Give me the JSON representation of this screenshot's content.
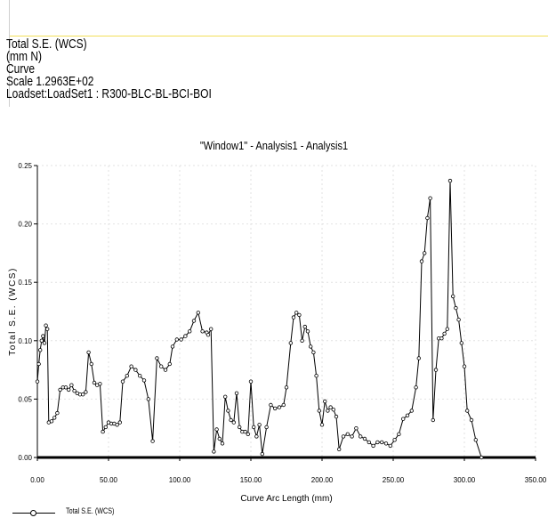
{
  "header": {
    "lines": [
      "Total S.E. (WCS)",
      "(mm N)",
      "Curve",
      "Scale  1.2963E+02",
      "Loadset:LoadSet1 :  R300-BLC-BL-BCI-BOI"
    ]
  },
  "chart_data": {
    "type": "line",
    "title": "\"Window1\" - Analysis1 - Analysis1",
    "xlabel": "Curve Arc Length (mm)",
    "ylabel": "Total S.E. (WCS)",
    "xlim": [
      0,
      350
    ],
    "ylim": [
      0,
      0.25
    ],
    "x_ticks": [
      "0.00",
      "50.00",
      "100.00",
      "150.00",
      "200.00",
      "250.00",
      "300.00",
      "350.00"
    ],
    "y_ticks": [
      "0.00",
      "0.05",
      "0.10",
      "0.15",
      "0.20",
      "0.25"
    ],
    "grid": true,
    "legend_position": "bottom-left",
    "series": [
      {
        "name": "Total S.E. (WCS)",
        "color": "#000000",
        "marker": "open-circle",
        "points": [
          [
            0,
            0.065
          ],
          [
            1,
            0.08
          ],
          [
            2,
            0.092
          ],
          [
            3,
            0.1
          ],
          [
            4,
            0.104
          ],
          [
            5,
            0.098
          ],
          [
            6,
            0.113
          ],
          [
            7,
            0.11
          ],
          [
            8,
            0.03
          ],
          [
            10,
            0.031
          ],
          [
            12,
            0.034
          ],
          [
            14,
            0.038
          ],
          [
            16,
            0.058
          ],
          [
            18,
            0.06
          ],
          [
            20,
            0.06
          ],
          [
            22,
            0.058
          ],
          [
            24,
            0.062
          ],
          [
            26,
            0.057
          ],
          [
            28,
            0.055
          ],
          [
            30,
            0.054
          ],
          [
            32,
            0.054
          ],
          [
            34,
            0.056
          ],
          [
            36,
            0.09
          ],
          [
            38,
            0.08
          ],
          [
            40,
            0.064
          ],
          [
            42,
            0.062
          ],
          [
            44,
            0.063
          ],
          [
            46,
            0.022
          ],
          [
            48,
            0.026
          ],
          [
            50,
            0.03
          ],
          [
            52,
            0.029
          ],
          [
            54,
            0.029
          ],
          [
            56,
            0.028
          ],
          [
            58,
            0.03
          ],
          [
            60,
            0.065
          ],
          [
            63,
            0.07
          ],
          [
            66,
            0.078
          ],
          [
            69,
            0.075
          ],
          [
            72,
            0.07
          ],
          [
            75,
            0.066
          ],
          [
            78,
            0.05
          ],
          [
            81,
            0.014
          ],
          [
            84,
            0.085
          ],
          [
            87,
            0.078
          ],
          [
            90,
            0.075
          ],
          [
            93,
            0.08
          ],
          [
            95,
            0.095
          ],
          [
            98,
            0.101
          ],
          [
            101,
            0.101
          ],
          [
            104,
            0.104
          ],
          [
            107,
            0.108
          ],
          [
            110,
            0.117
          ],
          [
            113,
            0.124
          ],
          [
            116,
            0.108
          ],
          [
            119,
            0.107
          ],
          [
            120,
            0.105
          ],
          [
            122,
            0.11
          ],
          [
            124,
            0.005
          ],
          [
            126,
            0.024
          ],
          [
            128,
            0.016
          ],
          [
            130,
            0.012
          ],
          [
            132,
            0.052
          ],
          [
            134,
            0.04
          ],
          [
            136,
            0.032
          ],
          [
            138,
            0.03
          ],
          [
            140,
            0.055
          ],
          [
            142,
            0.026
          ],
          [
            144,
            0.022
          ],
          [
            146,
            0.022
          ],
          [
            148,
            0.02
          ],
          [
            150,
            0.065
          ],
          [
            152,
            0.026
          ],
          [
            154,
            0.018
          ],
          [
            156,
            0.028
          ],
          [
            158,
            0.003
          ],
          [
            161,
            0.026
          ],
          [
            164,
            0.045
          ],
          [
            167,
            0.042
          ],
          [
            170,
            0.043
          ],
          [
            173,
            0.045
          ],
          [
            175,
            0.06
          ],
          [
            178,
            0.098
          ],
          [
            180,
            0.12
          ],
          [
            182,
            0.124
          ],
          [
            184,
            0.122
          ],
          [
            186,
            0.1
          ],
          [
            188,
            0.112
          ],
          [
            190,
            0.108
          ],
          [
            192,
            0.095
          ],
          [
            194,
            0.09
          ],
          [
            196,
            0.07
          ],
          [
            198,
            0.04
          ],
          [
            200,
            0.028
          ],
          [
            202,
            0.048
          ],
          [
            204,
            0.04
          ],
          [
            206,
            0.043
          ],
          [
            208,
            0.041
          ],
          [
            210,
            0.035
          ],
          [
            212,
            0.007
          ],
          [
            215,
            0.018
          ],
          [
            218,
            0.02
          ],
          [
            221,
            0.018
          ],
          [
            224,
            0.025
          ],
          [
            227,
            0.018
          ],
          [
            230,
            0.016
          ],
          [
            233,
            0.013
          ],
          [
            236,
            0.01
          ],
          [
            239,
            0.013
          ],
          [
            242,
            0.013
          ],
          [
            245,
            0.012
          ],
          [
            248,
            0.01
          ],
          [
            251,
            0.015
          ],
          [
            254,
            0.02
          ],
          [
            257,
            0.033
          ],
          [
            260,
            0.036
          ],
          [
            263,
            0.04
          ],
          [
            266,
            0.06
          ],
          [
            268,
            0.085
          ],
          [
            270,
            0.168
          ],
          [
            272,
            0.175
          ],
          [
            274,
            0.205
          ],
          [
            276,
            0.222
          ],
          [
            278,
            0.032
          ],
          [
            280,
            0.075
          ],
          [
            282,
            0.102
          ],
          [
            284,
            0.102
          ],
          [
            286,
            0.106
          ],
          [
            288,
            0.11
          ],
          [
            290,
            0.237
          ],
          [
            292,
            0.138
          ],
          [
            294,
            0.128
          ],
          [
            296,
            0.118
          ],
          [
            298,
            0.098
          ],
          [
            300,
            0.078
          ],
          [
            302,
            0.04
          ],
          [
            305,
            0.032
          ],
          [
            308,
            0.015
          ],
          [
            312,
            0.0
          ]
        ]
      }
    ]
  }
}
